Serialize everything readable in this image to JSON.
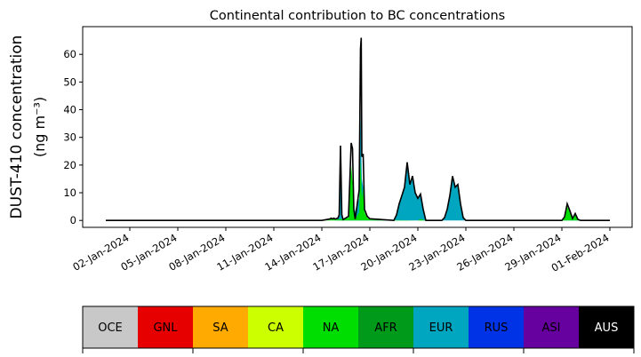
{
  "chart_data": {
    "type": "area",
    "title": "Continental contribution to BC concentrations",
    "ylabel_line1": "DUST-410 concentration",
    "ylabel_line2": "(ng m⁻³)",
    "xlabel": "",
    "x_domain": [
      "2023-12-31",
      "2024-02-01"
    ],
    "ylim": [
      -2.5,
      70
    ],
    "y_ticks": [
      0,
      10,
      20,
      30,
      40,
      50,
      60
    ],
    "x_ticks": [
      {
        "date": "2024-01-02",
        "label": "02-Jan-2024"
      },
      {
        "date": "2024-01-05",
        "label": "05-Jan-2024"
      },
      {
        "date": "2024-01-08",
        "label": "08-Jan-2024"
      },
      {
        "date": "2024-01-11",
        "label": "11-Jan-2024"
      },
      {
        "date": "2024-01-14",
        "label": "14-Jan-2024"
      },
      {
        "date": "2024-01-17",
        "label": "17-Jan-2024"
      },
      {
        "date": "2024-01-20",
        "label": "20-Jan-2024"
      },
      {
        "date": "2024-01-23",
        "label": "23-Jan-2024"
      },
      {
        "date": "2024-01-26",
        "label": "26-Jan-2024"
      },
      {
        "date": "2024-01-29",
        "label": "29-Jan-2024"
      },
      {
        "date": "2024-02-01",
        "label": "01-Feb-2024"
      }
    ],
    "grid": false,
    "legend": {
      "placement": "bottom colorbar",
      "entries": [
        {
          "label": "OCE",
          "color": "#c8c8c8",
          "text_color": "#000000"
        },
        {
          "label": "GNL",
          "color": "#e60000",
          "text_color": "#000000"
        },
        {
          "label": "SA",
          "color": "#ffaa00",
          "text_color": "#000000"
        },
        {
          "label": "CA",
          "color": "#ccff00",
          "text_color": "#000000"
        },
        {
          "label": "NA",
          "color": "#00dd00",
          "text_color": "#000000"
        },
        {
          "label": "AFR",
          "color": "#009a1a",
          "text_color": "#000000"
        },
        {
          "label": "EUR",
          "color": "#00a5c0",
          "text_color": "#000000"
        },
        {
          "label": "RUS",
          "color": "#0033e6",
          "text_color": "#000000"
        },
        {
          "label": "ASI",
          "color": "#66009e",
          "text_color": "#000000"
        },
        {
          "label": "AUS",
          "color": "#000000",
          "text_color": "#ffffff"
        }
      ]
    },
    "series": [
      {
        "region": "NA",
        "color": "#00dd00",
        "x": [
          "2023-12-31T12:00",
          "2024-01-14T00:00",
          "2024-01-14T12:00",
          "2024-01-14T14:00",
          "2024-01-14T16:00",
          "2024-01-14T18:00",
          "2024-01-14T20:00",
          "2024-01-15T00:00",
          "2024-01-15T16:00",
          "2024-01-15T20:00",
          "2024-01-15T22:00",
          "2024-01-16T00:00",
          "2024-01-16T02:00",
          "2024-01-16T08:00",
          "2024-01-16T10:00",
          "2024-01-16T12:00",
          "2024-01-16T14:00",
          "2024-01-16T16:00",
          "2024-01-16T20:00",
          "2024-01-17T00:00",
          "2024-01-20T00:00",
          "2024-01-20T04:00",
          "2024-01-20T12:00",
          "2024-01-29T00:00",
          "2024-01-29T04:00",
          "2024-01-29T08:00",
          "2024-01-29T12:00",
          "2024-01-29T16:00",
          "2024-01-29T20:00",
          "2024-01-30T00:00",
          "2024-01-30T04:00",
          "2024-01-31T12:00",
          "2024-02-01T00:00"
        ],
        "values": [
          0,
          0,
          0.5,
          0.8,
          0.5,
          0.8,
          0.5,
          0.3,
          1,
          20,
          14,
          2,
          0.5,
          3,
          22,
          8,
          12,
          3,
          1,
          0.3,
          0,
          0.5,
          0,
          0,
          1,
          5,
          3,
          0.5,
          2,
          0.3,
          0,
          0,
          0
        ]
      },
      {
        "region": "EUR",
        "color": "#00a5c0",
        "x": [
          "2023-12-31T12:00",
          "2024-01-14T20:00",
          "2024-01-15T00:00",
          "2024-01-15T02:00",
          "2024-01-15T04:00",
          "2024-01-15T06:00",
          "2024-01-15T08:00",
          "2024-01-15T16:00",
          "2024-01-15T20:00",
          "2024-01-15T22:00",
          "2024-01-16T00:00",
          "2024-01-16T08:00",
          "2024-01-16T10:00",
          "2024-01-16T12:00",
          "2024-01-16T14:00",
          "2024-01-16T16:00",
          "2024-01-16T20:00",
          "2024-01-17T00:00",
          "2024-01-18T12:00",
          "2024-01-18T16:00",
          "2024-01-18T20:00",
          "2024-01-19T00:00",
          "2024-01-19T04:00",
          "2024-01-19T08:00",
          "2024-01-19T12:00",
          "2024-01-19T16:00",
          "2024-01-19T20:00",
          "2024-01-20T00:00",
          "2024-01-20T04:00",
          "2024-01-20T08:00",
          "2024-01-20T12:00",
          "2024-01-21T12:00",
          "2024-01-21T16:00",
          "2024-01-21T20:00",
          "2024-01-22T00:00",
          "2024-01-22T04:00",
          "2024-01-22T08:00",
          "2024-01-22T12:00",
          "2024-01-22T16:00",
          "2024-01-22T20:00",
          "2024-01-23T00:00",
          "2024-01-29T00:00",
          "2024-01-29T04:00",
          "2024-01-29T08:00",
          "2024-01-29T12:00",
          "2024-01-29T16:00",
          "2024-01-29T20:00",
          "2024-01-30T00:00",
          "2024-02-01T00:00"
        ],
        "values": [
          0,
          0,
          0.5,
          2,
          26,
          2,
          0.3,
          0.5,
          8,
          12,
          2,
          8,
          40,
          15,
          12,
          1,
          0.5,
          0.3,
          0,
          2,
          6,
          9,
          12,
          20,
          13,
          16,
          10,
          8,
          9,
          4,
          0,
          0,
          1,
          4,
          9,
          15,
          12,
          13,
          6,
          1,
          0,
          0,
          0.3,
          1,
          0.5,
          0.2,
          0.5,
          0.1,
          0
        ]
      },
      {
        "region": "AUS",
        "color": "#000000",
        "x": [
          "2023-12-31T12:00",
          "2024-01-14T00:00",
          "2024-01-14T12:00",
          "2024-01-14T14:00",
          "2024-01-14T16:00",
          "2024-01-14T18:00",
          "2024-01-14T20:00",
          "2024-01-15T00:00",
          "2024-01-15T02:00",
          "2024-01-15T04:00",
          "2024-01-15T06:00",
          "2024-01-15T08:00",
          "2024-01-15T16:00",
          "2024-01-15T20:00",
          "2024-01-15T22:00",
          "2024-01-16T00:00",
          "2024-01-16T02:00",
          "2024-01-16T08:00",
          "2024-01-16T10:00",
          "2024-01-16T11:00",
          "2024-01-16T12:00",
          "2024-01-16T14:00",
          "2024-01-16T16:00",
          "2024-01-16T20:00",
          "2024-01-17T00:00",
          "2024-01-18T12:00",
          "2024-01-18T16:00",
          "2024-01-18T20:00",
          "2024-01-19T00:00",
          "2024-01-19T04:00",
          "2024-01-19T08:00",
          "2024-01-19T12:00",
          "2024-01-19T16:00",
          "2024-01-19T20:00",
          "2024-01-20T00:00",
          "2024-01-20T04:00",
          "2024-01-20T08:00",
          "2024-01-20T12:00",
          "2024-01-21T12:00",
          "2024-01-21T16:00",
          "2024-01-21T20:00",
          "2024-01-22T00:00",
          "2024-01-22T04:00",
          "2024-01-22T08:00",
          "2024-01-22T12:00",
          "2024-01-22T16:00",
          "2024-01-22T20:00",
          "2024-01-23T00:00",
          "2024-01-29T00:00",
          "2024-01-29T04:00",
          "2024-01-29T08:00",
          "2024-01-29T12:00",
          "2024-01-29T16:00",
          "2024-01-29T20:00",
          "2024-01-30T00:00",
          "2024-01-30T04:00",
          "2024-01-31T12:00",
          "2024-02-01T00:00"
        ],
        "values": [
          0,
          0,
          0.5,
          0.8,
          0.5,
          0.8,
          0.5,
          0.8,
          2,
          27,
          2,
          0.3,
          1.5,
          28,
          26,
          4,
          0.5,
          11,
          62,
          66,
          23,
          24,
          4,
          1.5,
          0.6,
          0,
          2,
          6,
          9,
          12,
          21,
          13,
          16,
          10,
          8,
          9.5,
          4,
          0,
          0,
          1,
          4,
          9,
          16,
          12,
          13,
          6,
          1,
          0,
          0,
          1.3,
          6,
          3.5,
          0.7,
          2.5,
          0.4,
          0,
          0,
          0
        ]
      }
    ]
  }
}
